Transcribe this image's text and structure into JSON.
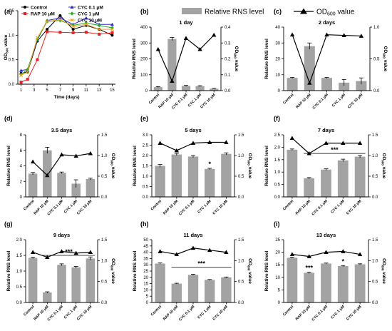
{
  "figure_legend": {
    "bar_label": "Relative RNS level",
    "line_label_prefix": "OD",
    "line_label_sub": "600",
    "line_label_suffix": " value",
    "bar_color": "#a3a3a3",
    "line_color": "#000000"
  },
  "chart_data": [
    {
      "panel": "(a)",
      "type": "line",
      "xlabel": "Time (days)",
      "ylabel_prefix": "OD",
      "ylabel_sub": "600",
      "ylabel_suffix": " value",
      "x": [
        1,
        2,
        3.5,
        5,
        7,
        9,
        11,
        13,
        15
      ],
      "xticks": [
        1,
        3,
        5,
        7,
        9,
        11,
        13,
        15
      ],
      "ylim": [
        0,
        1.5
      ],
      "yticks": [
        0,
        0.5,
        1.0,
        1.5
      ],
      "grid": false,
      "legend_position": "top-left",
      "series": [
        {
          "name": "Control",
          "color": "#000000",
          "marker": "circle",
          "values": [
            0.22,
            0.25,
            0.88,
            1.12,
            1.4,
            1.12,
            1.2,
            1.12,
            1.0
          ]
        },
        {
          "name": "RAP 10 μM",
          "color": "#e8201e",
          "marker": "square",
          "values": [
            0.04,
            0.1,
            0.5,
            1.07,
            1.06,
            1.05,
            1.06,
            1.02,
            1.05
          ]
        },
        {
          "name": "CYC 0.1 μM",
          "color": "#2c2cd0",
          "marker": "triangle",
          "values": [
            0.28,
            0.3,
            0.9,
            1.3,
            1.35,
            1.22,
            1.35,
            1.22,
            1.22
          ]
        },
        {
          "name": "CYC 1 μM",
          "color": "#22aa22",
          "marker": "diamond",
          "values": [
            0.2,
            0.3,
            0.92,
            1.28,
            1.3,
            1.2,
            1.25,
            1.2,
            1.15
          ]
        },
        {
          "name": "CYC 10 μM",
          "color": "#f0a020",
          "marker": "x",
          "values": [
            0.18,
            0.25,
            0.95,
            1.28,
            1.32,
            1.18,
            1.22,
            1.12,
            1.12
          ]
        }
      ]
    },
    {
      "panel": "(b)",
      "title": "1 day",
      "type": "bar",
      "categories": [
        "Control",
        "RAP 10 μM",
        "CYC 0.1 μM",
        "CYC 1 μM",
        "CYC 10 μM"
      ],
      "values": [
        22,
        325,
        30,
        28,
        12
      ],
      "errors": [
        3,
        10,
        3,
        3,
        2
      ],
      "od": [
        0.26,
        0.06,
        0.33,
        0.26,
        0.35
      ],
      "ylim": [
        0,
        400
      ],
      "yticks": [
        0,
        100,
        200,
        300,
        400
      ],
      "od_lim": [
        0,
        0.4
      ],
      "od_ticks": [
        0.0,
        0.1,
        0.2,
        0.3,
        0.4
      ],
      "sig": []
    },
    {
      "panel": "(c)",
      "title": "2 days",
      "type": "bar",
      "categories": [
        "Control",
        "RAP 10 μM",
        "CYC 0.1 μM",
        "CYC 1 μM",
        "CYC 10 μM"
      ],
      "values": [
        8,
        28,
        8,
        5,
        6
      ],
      "errors": [
        0.3,
        2,
        0.3,
        2,
        2
      ],
      "od": [
        0.88,
        0.12,
        0.88,
        0.87,
        0.86
      ],
      "ylim": [
        0,
        40
      ],
      "yticks": [
        0,
        10,
        20,
        30,
        40
      ],
      "od_lim": [
        0,
        1.0
      ],
      "od_ticks": [
        0.0,
        0.5,
        1.0
      ],
      "sig": []
    },
    {
      "panel": "(d)",
      "title": "3.5 days",
      "type": "bar",
      "categories": [
        "Control",
        "RAP 10 μM",
        "CYC 0.1 μM",
        "CYC 1 μM",
        "CYC 10 μM"
      ],
      "values": [
        3.0,
        6.0,
        3.1,
        1.7,
        2.3
      ],
      "errors": [
        0.15,
        0.4,
        0.1,
        0.5,
        0.1
      ],
      "od": [
        0.85,
        0.52,
        1.02,
        0.99,
        1.05
      ],
      "ylim": [
        0,
        8
      ],
      "yticks": [
        0,
        2,
        4,
        6,
        8
      ],
      "od_lim": [
        0,
        1.5
      ],
      "od_ticks": [
        0.0,
        0.5,
        1.0,
        1.5
      ],
      "sig": []
    },
    {
      "panel": "(e)",
      "title": "5 days",
      "type": "bar",
      "categories": [
        "Control",
        "RAP 10 μM",
        "CYC 0.1 μM",
        "CYC 1 μM",
        "CYC 10 μM"
      ],
      "values": [
        1.5,
        2.05,
        1.95,
        1.35,
        2.08
      ],
      "errors": [
        0.07,
        0.05,
        0.05,
        0.03,
        0.05
      ],
      "od": [
        1.3,
        1.12,
        1.3,
        1.32,
        1.32
      ],
      "ylim": [
        0,
        3.0
      ],
      "yticks": [
        0.0,
        0.5,
        1.0,
        1.5,
        2.0,
        2.5,
        3.0
      ],
      "od_lim": [
        0,
        1.5
      ],
      "od_ticks": [
        0.0,
        0.5,
        1.0,
        1.5
      ],
      "sig": [
        {
          "type": "star",
          "index": 3,
          "label": "*"
        }
      ]
    },
    {
      "panel": "(f)",
      "title": "7 days",
      "type": "bar",
      "categories": [
        "Control",
        "RAP 10 μM",
        "CYC 0.1 μM",
        "CYC 1 μM",
        "CYC 10 μM"
      ],
      "values": [
        1.9,
        0.75,
        1.1,
        1.47,
        1.62
      ],
      "errors": [
        0.03,
        0.03,
        0.03,
        0.05,
        0.05
      ],
      "od": [
        1.42,
        1.05,
        1.3,
        1.3,
        1.3
      ],
      "ylim": [
        0,
        2.5
      ],
      "yticks": [
        0.0,
        0.5,
        1.0,
        1.5,
        2.0,
        2.5
      ],
      "od_lim": [
        0,
        1.5
      ],
      "od_ticks": [
        0.0,
        0.5,
        1.0,
        1.5
      ],
      "sig": [
        {
          "type": "bar",
          "from": 1,
          "to": 4,
          "y": 1.75,
          "label": "***"
        }
      ]
    },
    {
      "panel": "(g)",
      "title": "9 days",
      "type": "bar",
      "categories": [
        "Control",
        "RAP 10 μM",
        "CYC 0.1 μM",
        "CYC 1 μM",
        "CYC 10 μM"
      ],
      "values": [
        1.42,
        0.32,
        1.2,
        1.12,
        1.4
      ],
      "errors": [
        0.02,
        0.02,
        0.03,
        0.03,
        0.05
      ],
      "od": [
        1.2,
        1.08,
        1.22,
        1.18,
        1.2
      ],
      "ylim": [
        0,
        2.0
      ],
      "yticks": [
        0.0,
        0.5,
        1.0,
        1.5,
        2.0
      ],
      "od_lim": [
        0,
        1.5
      ],
      "od_ticks": [
        0.0,
        0.5,
        1.0,
        1.5
      ],
      "sig": [
        {
          "type": "bar",
          "from": 1,
          "to": 4,
          "y": 1.5,
          "label": "***"
        }
      ]
    },
    {
      "panel": "(h)",
      "title": "11 days",
      "type": "bar",
      "categories": [
        "Control",
        "RAP 10 μM",
        "CYC 0.1 μM",
        "CYC 1 μM",
        "CYC 10 μM"
      ],
      "values": [
        31,
        15,
        22,
        18,
        20
      ],
      "errors": [
        0.5,
        0.3,
        0.4,
        0.3,
        0.3
      ],
      "od": [
        1.22,
        1.15,
        1.3,
        1.25,
        1.2
      ],
      "ylim": [
        0,
        50
      ],
      "yticks": [
        0,
        5,
        10,
        15,
        20,
        25,
        30,
        35,
        40,
        45,
        50
      ],
      "od_lim": [
        0,
        1.5
      ],
      "od_ticks": [
        0.0,
        0.5,
        1.0,
        1.5
      ],
      "sig": [
        {
          "type": "bar",
          "from": 1,
          "to": 4,
          "y": 28,
          "label": "***"
        }
      ]
    },
    {
      "panel": "(i)",
      "title": "13 days",
      "type": "bar",
      "categories": [
        "Control",
        "RAP 10 μM",
        "CYC 0.1 μM",
        "CYC 1 μM",
        "CYC 10 μM"
      ],
      "values": [
        17.8,
        11.8,
        15.5,
        14.5,
        15.2
      ],
      "errors": [
        0.2,
        0.3,
        0.2,
        0.2,
        0.2
      ],
      "od": [
        1.15,
        1.1,
        1.2,
        1.22,
        1.15
      ],
      "ylim": [
        0,
        25
      ],
      "yticks": [
        0,
        5,
        10,
        15,
        20,
        25
      ],
      "od_lim": [
        0,
        1.5
      ],
      "od_ticks": [
        0.0,
        0.5,
        1.0,
        1.5
      ],
      "sig": [
        {
          "type": "star",
          "index": 1,
          "label": "***"
        },
        {
          "type": "star",
          "index": 3,
          "label": "*"
        }
      ]
    }
  ]
}
